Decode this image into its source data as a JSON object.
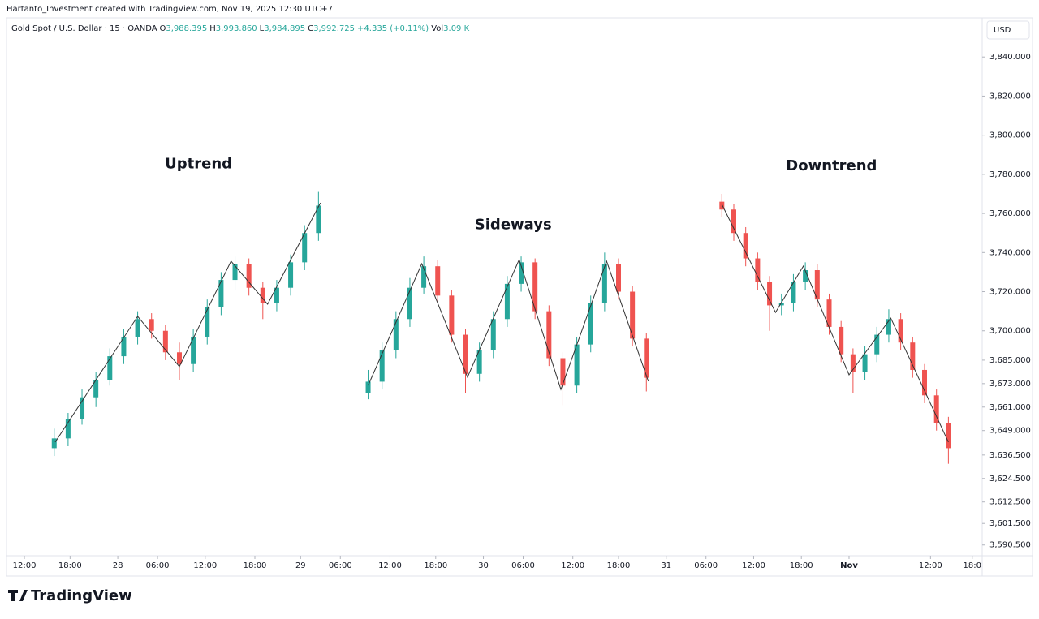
{
  "header": {
    "credit": "Hartanto_Investment created with TradingView.com, Nov 19, 2025 12:30 UTC+7",
    "symbol": "Gold Spot / U.S. Dollar · 15 · OANDA",
    "ohlc": [
      {
        "label": "O",
        "value": "3,988.395"
      },
      {
        "label": "H",
        "value": "3,993.860"
      },
      {
        "label": "L",
        "value": "3,984.895"
      },
      {
        "label": "C",
        "value": "3,992.725"
      }
    ],
    "change": "+4.335 (+0.11%)",
    "volume_label": "Vol",
    "volume": "3.09 K",
    "currency": "USD"
  },
  "logo": "TradingView",
  "chart_data": {
    "type": "candlestick",
    "up_color": "#26a69a",
    "down_color": "#ef5350",
    "line_color": "#333333",
    "xlim": [
      0,
      491
    ],
    "ylim": [
      3585,
      3860
    ],
    "xticks": [
      {
        "value": 9,
        "label": "12:00"
      },
      {
        "value": 32,
        "label": "18:00"
      },
      {
        "value": 56,
        "label": "28"
      },
      {
        "value": 76,
        "label": "06:00"
      },
      {
        "value": 100,
        "label": "12:00"
      },
      {
        "value": 125,
        "label": "18:00"
      },
      {
        "value": 148,
        "label": "29"
      },
      {
        "value": 168,
        "label": "06:00"
      },
      {
        "value": 193,
        "label": "12:00"
      },
      {
        "value": 216,
        "label": "18:00"
      },
      {
        "value": 240,
        "label": "30"
      },
      {
        "value": 260,
        "label": "06:00"
      },
      {
        "value": 285,
        "label": "12:00"
      },
      {
        "value": 308,
        "label": "18:00"
      },
      {
        "value": 332,
        "label": "31"
      },
      {
        "value": 352,
        "label": "06:00"
      },
      {
        "value": 376,
        "label": "12:00"
      },
      {
        "value": 400,
        "label": "18:00"
      },
      {
        "value": 424,
        "label": "Nov"
      },
      {
        "value": 465,
        "label": "12:00"
      },
      {
        "value": 486,
        "label": "18:0"
      }
    ],
    "yticks": [
      {
        "value": 3840,
        "label": "3,840.000"
      },
      {
        "value": 3820,
        "label": "3,820.000"
      },
      {
        "value": 3800,
        "label": "3,800.000"
      },
      {
        "value": 3780,
        "label": "3,780.000"
      },
      {
        "value": 3760,
        "label": "3,760.000"
      },
      {
        "value": 3740,
        "label": "3,740.000"
      },
      {
        "value": 3720,
        "label": "3,720.000"
      },
      {
        "value": 3700,
        "label": "3,700.000"
      },
      {
        "value": 3685,
        "label": "3,685.000"
      },
      {
        "value": 3673,
        "label": "3,673.000"
      },
      {
        "value": 3661,
        "label": "3,661.000"
      },
      {
        "value": 3649,
        "label": "3,649.000"
      },
      {
        "value": 3636.5,
        "label": "3,636.500"
      },
      {
        "value": 3624.5,
        "label": "3,624.500"
      },
      {
        "value": 3612.5,
        "label": "3,612.500"
      },
      {
        "value": 3601.5,
        "label": "3,601.500"
      },
      {
        "value": 3590.5,
        "label": "3,590.500"
      }
    ],
    "series": [
      {
        "name": "Uptrend",
        "x": [
          24,
          31,
          38,
          45,
          52,
          59,
          66,
          73,
          80,
          87,
          94,
          101,
          108,
          115,
          122,
          129,
          136,
          143,
          150,
          157
        ],
        "open": [
          3640,
          3645,
          3655,
          3666,
          3675,
          3687,
          3697,
          3706,
          3700,
          3689,
          3683,
          3697,
          3712,
          3726,
          3734,
          3722,
          3714,
          3722,
          3735,
          3750
        ],
        "high": [
          3650,
          3658,
          3670,
          3679,
          3691,
          3701,
          3710,
          3709,
          3703,
          3694,
          3701,
          3716,
          3730,
          3738,
          3737,
          3725,
          3726,
          3739,
          3754,
          3771
        ],
        "low": [
          3636,
          3641,
          3652,
          3661,
          3672,
          3683,
          3693,
          3696,
          3685,
          3675,
          3679,
          3693,
          3708,
          3721,
          3718,
          3706,
          3710,
          3718,
          3731,
          3746
        ],
        "close": [
          3645,
          3655,
          3666,
          3675,
          3687,
          3697,
          3706,
          3700,
          3689,
          3683,
          3697,
          3712,
          3726,
          3734,
          3722,
          3714,
          3722,
          3735,
          3750,
          3764
        ],
        "line_x": [
          24.5,
          66,
          87,
          113,
          131.4,
          158
        ],
        "line_y": [
          3643.1,
          3707.4,
          3681.7,
          3735.6,
          3713.6,
          3765.4
        ]
      },
      {
        "name": "Sideways",
        "x": [
          182,
          189,
          196,
          203,
          210,
          217,
          224,
          231,
          238,
          245,
          252,
          259,
          266,
          273,
          280,
          287,
          294,
          301,
          308,
          315,
          322
        ],
        "open": [
          3668,
          3674,
          3690,
          3706,
          3722,
          3733,
          3718,
          3698,
          3678,
          3690,
          3706,
          3724,
          3735,
          3710,
          3686,
          3672,
          3693,
          3714,
          3734,
          3720,
          3696
        ],
        "high": [
          3680,
          3694,
          3710,
          3727,
          3738,
          3736,
          3721,
          3701,
          3694,
          3710,
          3728,
          3738,
          3737,
          3713,
          3689,
          3697,
          3718,
          3740,
          3737,
          3723,
          3699
        ],
        "low": [
          3665,
          3670,
          3686,
          3702,
          3719,
          3714,
          3694,
          3668,
          3674,
          3686,
          3702,
          3720,
          3706,
          3682,
          3662,
          3668,
          3689,
          3710,
          3716,
          3692,
          3669
        ],
        "close": [
          3674,
          3690,
          3706,
          3722,
          3733,
          3718,
          3698,
          3678,
          3690,
          3706,
          3724,
          3735,
          3710,
          3686,
          3672,
          3693,
          3714,
          3734,
          3720,
          3696,
          3676
        ],
        "line_x": [
          182,
          209,
          232,
          258,
          279,
          302,
          323
        ],
        "line_y": [
          3672.1,
          3734.3,
          3676.3,
          3736.4,
          3670,
          3735.6,
          3674.2
        ]
      },
      {
        "name": "Downtrend",
        "x": [
          360,
          366,
          372,
          378,
          384,
          390,
          396,
          402,
          408,
          414,
          420,
          426,
          432,
          438,
          444,
          450,
          456,
          462,
          468,
          474
        ],
        "open": [
          3766,
          3762,
          3750,
          3737,
          3725,
          3713,
          3714,
          3725,
          3731,
          3716,
          3702,
          3688,
          3679,
          3688,
          3698,
          3706,
          3694,
          3680,
          3667,
          3653
        ],
        "high": [
          3770,
          3765,
          3753,
          3740,
          3728,
          3719,
          3729,
          3735,
          3734,
          3719,
          3705,
          3691,
          3692,
          3702,
          3711,
          3709,
          3697,
          3683,
          3670,
          3656
        ],
        "low": [
          3758,
          3746,
          3733,
          3721,
          3700,
          3708,
          3710,
          3721,
          3712,
          3698,
          3684,
          3668,
          3675,
          3684,
          3694,
          3690,
          3676,
          3663,
          3649,
          3632
        ],
        "close": [
          3762,
          3750,
          3737,
          3725,
          3713,
          3714,
          3725,
          3731,
          3716,
          3702,
          3688,
          3679,
          3688,
          3698,
          3706,
          3694,
          3680,
          3667,
          3653,
          3640
        ],
        "line_x": [
          360,
          387,
          401,
          424,
          445,
          474
        ],
        "line_y": [
          3764.6,
          3709.4,
          3733.1,
          3677.5,
          3706.5,
          3643.1
        ]
      }
    ]
  }
}
